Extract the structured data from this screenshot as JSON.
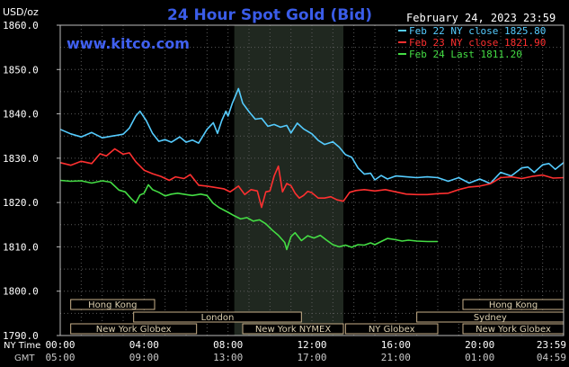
{
  "chart_data": {
    "type": "line",
    "title": "24 Hour Spot Gold (Bid)",
    "date": "February 24, 2023 23:59",
    "watermark": "www.kitco.com",
    "ylabel": "USD/oz",
    "ylim": [
      1790.0,
      1860.0
    ],
    "y_ticks": [
      "1860.0",
      "1850.0",
      "1840.0",
      "1830.0",
      "1820.0",
      "1810.0",
      "1800.0",
      "1790.0"
    ],
    "y_tick_values": [
      1860,
      1850,
      1840,
      1830,
      1820,
      1810,
      1800,
      1790
    ],
    "x_row_label_ny": "NY Time",
    "x_row_label_gmt": "GMT",
    "x_ticks_ny": [
      "00:00",
      "04:00",
      "08:00",
      "12:00",
      "16:00",
      "20:00",
      "23:59"
    ],
    "x_ticks_gmt": [
      "05:00",
      "09:00",
      "13:00",
      "17:00",
      "21:00",
      "01:00",
      "04:59"
    ],
    "x_tick_hours": [
      0,
      4,
      8,
      12,
      16,
      20,
      24
    ],
    "xlim": [
      0,
      24
    ],
    "grid": true,
    "legend_position": "top-right",
    "nymex_shade_hours": [
      8.3,
      13.5
    ],
    "markets": [
      {
        "name": "Hong Kong",
        "row": 0,
        "start": 0.5,
        "end": 4.5
      },
      {
        "name": "London",
        "row": 1,
        "start": 3.5,
        "end": 11.5
      },
      {
        "name": "New York Globex",
        "row": 2,
        "start": 0.5,
        "end": 6.5
      },
      {
        "name": "New York NYMEX",
        "row": 2,
        "start": 8.7,
        "end": 13.5
      },
      {
        "name": "NY Globex",
        "row": 2,
        "start": 13.6,
        "end": 18.0
      },
      {
        "name": "Hong Kong",
        "row": 0,
        "start": 19.2,
        "end": 24.0
      },
      {
        "name": "Sydney",
        "row": 1,
        "start": 17.0,
        "end": 24.0
      },
      {
        "name": "New York Globex",
        "row": 2,
        "start": 19.2,
        "end": 24.0
      }
    ],
    "series": [
      {
        "name": "Feb 22 NY close 1825.80",
        "color": "#55ccff",
        "points": [
          [
            0.0,
            1836.5
          ],
          [
            0.5,
            1835.5
          ],
          [
            1.0,
            1834.8
          ],
          [
            1.5,
            1835.8
          ],
          [
            2.0,
            1834.6
          ],
          [
            2.5,
            1835.0
          ],
          [
            3.0,
            1835.4
          ],
          [
            3.3,
            1836.8
          ],
          [
            3.6,
            1839.5
          ],
          [
            3.8,
            1840.6
          ],
          [
            4.1,
            1838.5
          ],
          [
            4.4,
            1835.6
          ],
          [
            4.7,
            1833.8
          ],
          [
            5.0,
            1834.2
          ],
          [
            5.3,
            1833.6
          ],
          [
            5.7,
            1834.8
          ],
          [
            6.0,
            1833.6
          ],
          [
            6.3,
            1834.1
          ],
          [
            6.6,
            1833.4
          ],
          [
            7.0,
            1836.5
          ],
          [
            7.3,
            1838.0
          ],
          [
            7.5,
            1835.6
          ],
          [
            7.7,
            1838.5
          ],
          [
            7.9,
            1840.6
          ],
          [
            8.0,
            1839.5
          ],
          [
            8.2,
            1842.3
          ],
          [
            8.4,
            1844.6
          ],
          [
            8.5,
            1845.7
          ],
          [
            8.7,
            1842.4
          ],
          [
            9.0,
            1840.5
          ],
          [
            9.3,
            1838.8
          ],
          [
            9.6,
            1839.0
          ],
          [
            9.9,
            1837.2
          ],
          [
            10.2,
            1837.6
          ],
          [
            10.5,
            1837.0
          ],
          [
            10.8,
            1837.4
          ],
          [
            11.0,
            1835.7
          ],
          [
            11.3,
            1837.9
          ],
          [
            11.6,
            1836.6
          ],
          [
            12.0,
            1835.5
          ],
          [
            12.3,
            1834.0
          ],
          [
            12.6,
            1833.1
          ],
          [
            13.0,
            1833.7
          ],
          [
            13.3,
            1832.5
          ],
          [
            13.6,
            1830.8
          ],
          [
            13.9,
            1830.2
          ],
          [
            14.2,
            1827.8
          ],
          [
            14.5,
            1826.4
          ],
          [
            14.8,
            1826.6
          ],
          [
            15.0,
            1825.1
          ],
          [
            15.3,
            1826.1
          ],
          [
            15.6,
            1825.3
          ],
          [
            16.0,
            1826.0
          ],
          [
            16.5,
            1825.8
          ],
          [
            17.0,
            1825.6
          ],
          [
            17.5,
            1825.8
          ],
          [
            18.0,
            1825.6
          ],
          [
            18.5,
            1824.8
          ],
          [
            19.0,
            1825.6
          ],
          [
            19.5,
            1824.4
          ],
          [
            20.0,
            1825.3
          ],
          [
            20.5,
            1824.3
          ],
          [
            21.0,
            1826.8
          ],
          [
            21.5,
            1826.0
          ],
          [
            22.0,
            1827.8
          ],
          [
            22.3,
            1828.0
          ],
          [
            22.6,
            1826.8
          ],
          [
            23.0,
            1828.5
          ],
          [
            23.3,
            1828.8
          ],
          [
            23.6,
            1827.5
          ],
          [
            24.0,
            1829.0
          ]
        ]
      },
      {
        "name": "Feb 23 NY close 1821.90",
        "color": "#ff3030",
        "points": [
          [
            0.0,
            1829.0
          ],
          [
            0.5,
            1828.4
          ],
          [
            1.0,
            1829.3
          ],
          [
            1.5,
            1828.8
          ],
          [
            1.9,
            1831.0
          ],
          [
            2.2,
            1830.5
          ],
          [
            2.6,
            1832.1
          ],
          [
            3.0,
            1830.9
          ],
          [
            3.3,
            1831.2
          ],
          [
            3.6,
            1829.2
          ],
          [
            4.0,
            1827.3
          ],
          [
            4.4,
            1826.5
          ],
          [
            4.8,
            1825.9
          ],
          [
            5.2,
            1825.0
          ],
          [
            5.5,
            1825.8
          ],
          [
            5.9,
            1825.4
          ],
          [
            6.2,
            1826.3
          ],
          [
            6.6,
            1823.9
          ],
          [
            7.0,
            1823.7
          ],
          [
            7.4,
            1823.4
          ],
          [
            7.8,
            1823.1
          ],
          [
            8.1,
            1822.4
          ],
          [
            8.5,
            1823.7
          ],
          [
            8.8,
            1821.8
          ],
          [
            9.1,
            1822.9
          ],
          [
            9.4,
            1822.6
          ],
          [
            9.6,
            1818.9
          ],
          [
            9.8,
            1822.4
          ],
          [
            10.0,
            1822.6
          ],
          [
            10.2,
            1826.0
          ],
          [
            10.4,
            1828.2
          ],
          [
            10.6,
            1822.4
          ],
          [
            10.8,
            1824.3
          ],
          [
            11.0,
            1823.8
          ],
          [
            11.2,
            1822.1
          ],
          [
            11.4,
            1821.0
          ],
          [
            11.6,
            1821.6
          ],
          [
            11.8,
            1822.5
          ],
          [
            12.0,
            1822.2
          ],
          [
            12.3,
            1821.0
          ],
          [
            12.6,
            1821.0
          ],
          [
            12.9,
            1821.3
          ],
          [
            13.2,
            1820.6
          ],
          [
            13.5,
            1820.3
          ],
          [
            13.8,
            1822.3
          ],
          [
            14.1,
            1822.7
          ],
          [
            14.5,
            1822.9
          ],
          [
            15.0,
            1822.6
          ],
          [
            15.5,
            1822.9
          ],
          [
            16.0,
            1822.4
          ],
          [
            16.5,
            1821.9
          ],
          [
            17.0,
            1821.8
          ],
          [
            17.5,
            1821.8
          ],
          [
            18.0,
            1822.0
          ],
          [
            18.5,
            1822.1
          ],
          [
            19.0,
            1822.9
          ],
          [
            19.5,
            1823.5
          ],
          [
            20.0,
            1823.7
          ],
          [
            20.5,
            1824.2
          ],
          [
            21.0,
            1825.6
          ],
          [
            21.5,
            1825.8
          ],
          [
            22.0,
            1825.4
          ],
          [
            22.5,
            1825.9
          ],
          [
            23.0,
            1826.2
          ],
          [
            23.5,
            1825.5
          ],
          [
            24.0,
            1825.6
          ]
        ]
      },
      {
        "name": "Feb 24 Last 1811.20",
        "color": "#44dd44",
        "points": [
          [
            0.0,
            1825.0
          ],
          [
            0.5,
            1824.8
          ],
          [
            1.0,
            1824.9
          ],
          [
            1.5,
            1824.4
          ],
          [
            2.0,
            1824.9
          ],
          [
            2.4,
            1824.6
          ],
          [
            2.8,
            1822.8
          ],
          [
            3.1,
            1822.4
          ],
          [
            3.4,
            1820.8
          ],
          [
            3.6,
            1819.9
          ],
          [
            3.8,
            1821.7
          ],
          [
            4.0,
            1822.1
          ],
          [
            4.2,
            1824.0
          ],
          [
            4.4,
            1822.9
          ],
          [
            4.7,
            1822.3
          ],
          [
            5.0,
            1821.5
          ],
          [
            5.3,
            1821.9
          ],
          [
            5.6,
            1822.1
          ],
          [
            6.0,
            1821.8
          ],
          [
            6.3,
            1821.6
          ],
          [
            6.7,
            1821.9
          ],
          [
            7.0,
            1821.6
          ],
          [
            7.3,
            1819.8
          ],
          [
            7.6,
            1818.8
          ],
          [
            8.0,
            1817.8
          ],
          [
            8.3,
            1817.0
          ],
          [
            8.6,
            1816.3
          ],
          [
            8.9,
            1816.6
          ],
          [
            9.2,
            1815.8
          ],
          [
            9.5,
            1816.1
          ],
          [
            9.8,
            1815.2
          ],
          [
            10.1,
            1813.8
          ],
          [
            10.4,
            1812.6
          ],
          [
            10.7,
            1811.0
          ],
          [
            10.8,
            1809.4
          ],
          [
            11.0,
            1812.3
          ],
          [
            11.2,
            1813.2
          ],
          [
            11.5,
            1811.4
          ],
          [
            11.8,
            1812.5
          ],
          [
            12.1,
            1812.0
          ],
          [
            12.4,
            1812.6
          ],
          [
            12.7,
            1811.5
          ],
          [
            13.0,
            1810.5
          ],
          [
            13.3,
            1810.0
          ],
          [
            13.6,
            1810.4
          ],
          [
            13.9,
            1809.9
          ],
          [
            14.2,
            1810.5
          ],
          [
            14.5,
            1810.4
          ],
          [
            14.8,
            1810.9
          ],
          [
            15.0,
            1810.5
          ],
          [
            15.3,
            1811.2
          ],
          [
            15.6,
            1811.9
          ],
          [
            16.0,
            1811.6
          ],
          [
            16.3,
            1811.3
          ],
          [
            16.6,
            1811.5
          ],
          [
            17.0,
            1811.3
          ],
          [
            17.5,
            1811.2
          ],
          [
            18.0,
            1811.2
          ]
        ]
      }
    ]
  }
}
